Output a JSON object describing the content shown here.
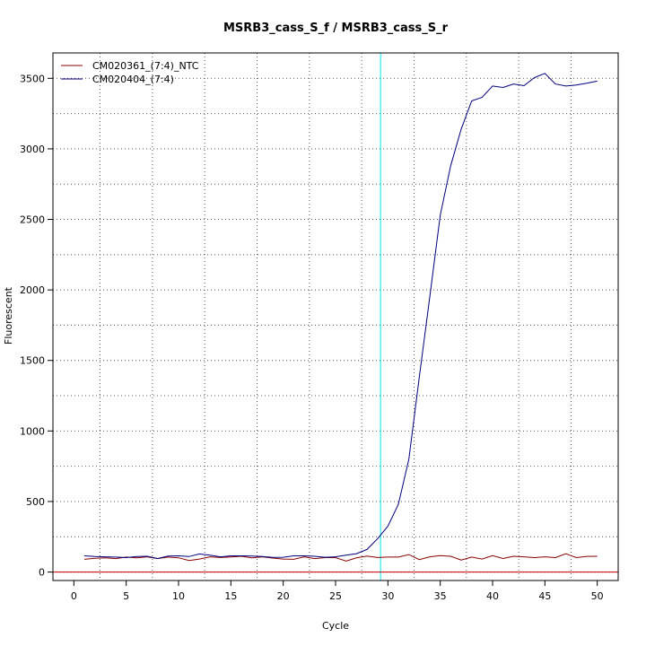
{
  "chart_data": {
    "type": "line",
    "title": "MSRB3_cass_S_f / MSRB3_cass_S_r",
    "xlabel": "Cycle",
    "ylabel": "Fluorescent",
    "xlim": [
      -2,
      52
    ],
    "ylim": [
      -60,
      3680
    ],
    "xticks": [
      0,
      5,
      10,
      15,
      20,
      25,
      30,
      35,
      40,
      45,
      50
    ],
    "yticks": [
      0,
      500,
      1000,
      1500,
      2000,
      2500,
      3000,
      3500
    ],
    "grid": true,
    "legend_position": "top-left",
    "threshold": {
      "x": 29.3,
      "color": "#00e5ee",
      "orientation": "vertical"
    },
    "baseline": {
      "y": 0,
      "color": "#cc0000",
      "orientation": "horizontal"
    },
    "x": [
      1,
      2,
      3,
      4,
      5,
      6,
      7,
      8,
      9,
      10,
      11,
      12,
      13,
      14,
      15,
      16,
      17,
      18,
      19,
      20,
      21,
      22,
      23,
      24,
      25,
      26,
      27,
      28,
      29,
      30,
      31,
      32,
      33,
      34,
      35,
      36,
      37,
      38,
      39,
      40,
      41,
      42,
      43,
      44,
      45,
      46,
      47,
      48,
      49,
      50
    ],
    "series": [
      {
        "name": "CM020361_(7:4)_NTC",
        "color": "#8b0000",
        "values": [
          90,
          98,
          100,
          95,
          106,
          100,
          108,
          95,
          106,
          101,
          82,
          92,
          108,
          103,
          107,
          112,
          100,
          108,
          99,
          92,
          90,
          108,
          95,
          102,
          102,
          78,
          100,
          113,
          103,
          106,
          106,
          124,
          88,
          108,
          117,
          112,
          85,
          106,
          92,
          116,
          96,
          112,
          108,
          102,
          108,
          102,
          130,
          102,
          111,
          112
        ]
      },
      {
        "name": "CM020404_(7:4)",
        "color": "#000080",
        "values": [
          115,
          110,
          108,
          106,
          102,
          110,
          112,
          96,
          113,
          115,
          110,
          128,
          120,
          108,
          115,
          115,
          113,
          110,
          104,
          105,
          115,
          115,
          112,
          105,
          108,
          120,
          130,
          160,
          235,
          325,
          480,
          800,
          1380,
          1950,
          2530,
          2880,
          3140,
          3340,
          3365,
          3445,
          3435,
          3460,
          3448,
          3505,
          3535,
          3460,
          3445,
          3452,
          3465,
          3480
        ]
      }
    ]
  }
}
